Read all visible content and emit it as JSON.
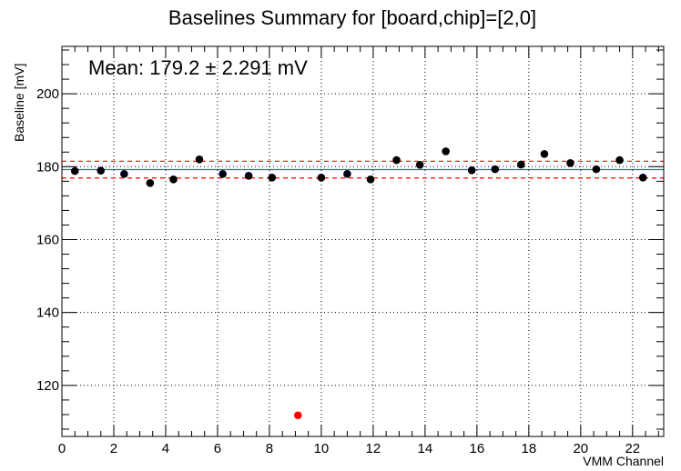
{
  "chart_data": {
    "type": "scatter",
    "title": "Baselines Summary for [board,chip]=[2,0]",
    "xlabel": "VMM Channel",
    "ylabel": "Baseline [mV]",
    "xlim": [
      0,
      23.2
    ],
    "ylim": [
      106,
      213
    ],
    "xticks": [
      "0",
      "2",
      "4",
      "6",
      "8",
      "10",
      "12",
      "14",
      "16",
      "18",
      "20",
      "22"
    ],
    "yticks": [
      "120",
      "140",
      "160",
      "180",
      "200"
    ],
    "grid": true,
    "annotation": "Mean: 179.2 ± 2.291 mV",
    "mean": 179.2,
    "band": [
      176.9,
      181.5
    ],
    "points": [
      {
        "x": 0.5,
        "y": 178.8
      },
      {
        "x": 1.5,
        "y": 178.9
      },
      {
        "x": 2.4,
        "y": 178.0
      },
      {
        "x": 3.4,
        "y": 175.5
      },
      {
        "x": 4.3,
        "y": 176.5
      },
      {
        "x": 5.3,
        "y": 182.0
      },
      {
        "x": 6.2,
        "y": 178.0
      },
      {
        "x": 7.2,
        "y": 177.5
      },
      {
        "x": 8.1,
        "y": 177.0
      },
      {
        "x": 10.0,
        "y": 177.0
      },
      {
        "x": 11.0,
        "y": 178.0
      },
      {
        "x": 11.9,
        "y": 176.5
      },
      {
        "x": 12.9,
        "y": 181.8
      },
      {
        "x": 13.8,
        "y": 180.5
      },
      {
        "x": 14.8,
        "y": 184.2
      },
      {
        "x": 15.8,
        "y": 179.0
      },
      {
        "x": 16.7,
        "y": 179.3
      },
      {
        "x": 17.7,
        "y": 180.6
      },
      {
        "x": 18.6,
        "y": 183.5
      },
      {
        "x": 19.6,
        "y": 181.0
      },
      {
        "x": 20.6,
        "y": 179.3
      },
      {
        "x": 21.5,
        "y": 181.8
      },
      {
        "x": 22.4,
        "y": 177.0
      }
    ],
    "outliers": [
      {
        "x": 9.1,
        "y": 111.8
      }
    ],
    "colors": {
      "point": "#000000",
      "outlier": "#ff0000",
      "mean_line": "#3a5fcd",
      "band_line": "#ff0000",
      "grid": "#000000"
    }
  }
}
